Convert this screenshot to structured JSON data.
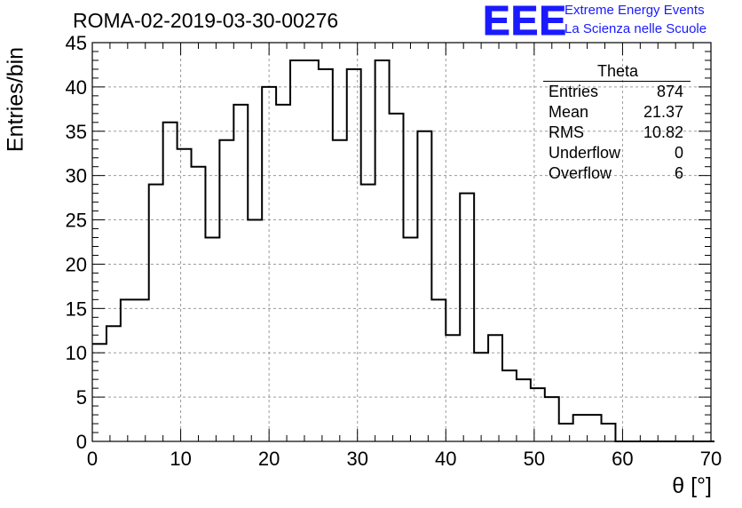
{
  "header": {
    "run_title": "ROMA-02-2019-03-30-00276"
  },
  "logo": {
    "mark": "EEE",
    "line1": "Extreme Energy Events",
    "line2": "La Scienza nelle Scuole"
  },
  "stats": {
    "title": "Theta",
    "rows": [
      {
        "label": "Entries",
        "value": "874"
      },
      {
        "label": "Mean",
        "value": "21.37"
      },
      {
        "label": "RMS",
        "value": "10.82"
      },
      {
        "label": "Underflow",
        "value": "0"
      },
      {
        "label": "Overflow",
        "value": "6"
      }
    ]
  },
  "chart_data": {
    "type": "bar",
    "title": "ROMA-02-2019-03-30-00276",
    "xlabel": "θ [°]",
    "ylabel": "Entries/bin",
    "xlim": [
      0,
      70
    ],
    "ylim": [
      0,
      45
    ],
    "x_ticks": [
      0,
      10,
      20,
      30,
      40,
      50,
      60,
      70
    ],
    "y_ticks": [
      0,
      5,
      10,
      15,
      20,
      25,
      30,
      35,
      40,
      45
    ],
    "grid": true,
    "bin_width": 1.6,
    "bin_edges_start": 0,
    "values": [
      11,
      13,
      16,
      16,
      29,
      36,
      33,
      31,
      23,
      34,
      38,
      25,
      40,
      38,
      43,
      43,
      42,
      34,
      42,
      29,
      43,
      37,
      23,
      35,
      16,
      12,
      28,
      10,
      12,
      8,
      7,
      6,
      5,
      2,
      3,
      3,
      2,
      0,
      0,
      0,
      0,
      0,
      0,
      0
    ]
  }
}
